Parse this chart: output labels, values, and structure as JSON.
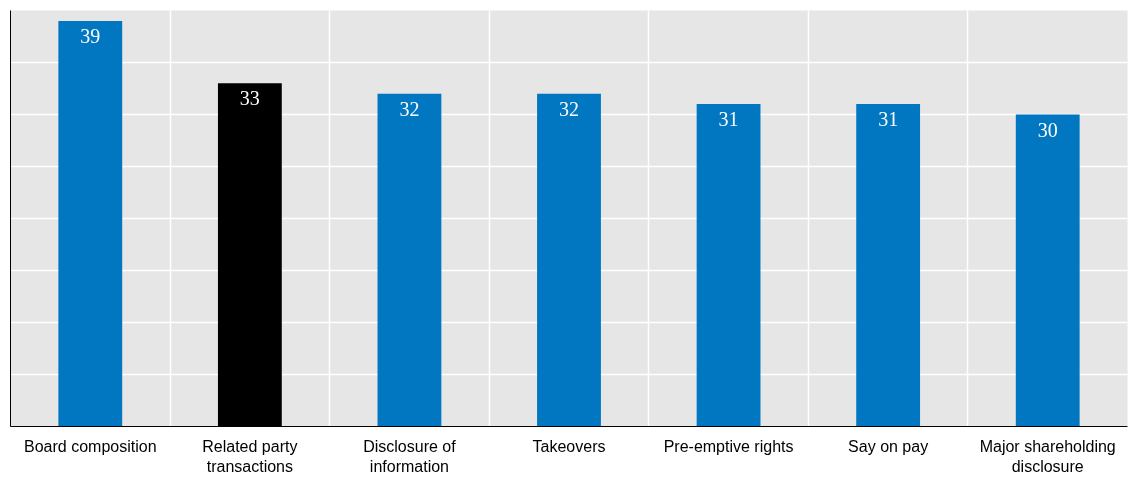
{
  "chart_data": {
    "type": "bar",
    "categories": [
      "Board composition",
      "Related party transactions",
      "Disclosure of information",
      "Takeovers",
      "Pre-emptive rights",
      "Say on pay",
      "Major shareholding disclosure"
    ],
    "values": [
      39,
      33,
      32,
      32,
      31,
      31,
      30
    ],
    "colors": [
      "#0077c0",
      "#000000",
      "#0077c0",
      "#0077c0",
      "#0077c0",
      "#0077c0",
      "#0077c0"
    ],
    "ylim": [
      0,
      40
    ],
    "yticks": [
      {
        "value": 0,
        "label": null
      },
      {
        "value": 5,
        "label": null
      },
      {
        "value": 10,
        "label": null
      },
      {
        "value": 15,
        "label": null
      },
      {
        "value": 20,
        "label": null
      },
      {
        "value": 25,
        "label": null
      },
      {
        "value": 30,
        "label": null
      },
      {
        "value": 35,
        "label": null
      },
      {
        "value": 40,
        "label": null
      }
    ],
    "tick_labels": "x",
    "data_labels": true,
    "grid": true
  }
}
